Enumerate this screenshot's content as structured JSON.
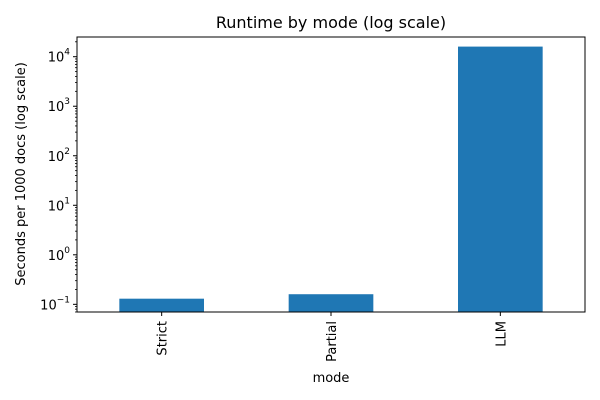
{
  "chart_data": {
    "type": "bar",
    "title": "Runtime by mode (log scale)",
    "xlabel": "mode",
    "ylabel": "Seconds per 1000 docs (log scale)",
    "categories": [
      "Strict",
      "Partial",
      "LLM"
    ],
    "values": [
      0.13,
      0.16,
      16000
    ],
    "y_scale": "log",
    "ylim": [
      0.07,
      25000
    ],
    "y_ticks": [
      {
        "base": "10",
        "exp": "−1",
        "value": 0.1
      },
      {
        "base": "10",
        "exp": "0",
        "value": 1
      },
      {
        "base": "10",
        "exp": "1",
        "value": 10
      },
      {
        "base": "10",
        "exp": "2",
        "value": 100
      },
      {
        "base": "10",
        "exp": "3",
        "value": 1000
      },
      {
        "base": "10",
        "exp": "4",
        "value": 10000
      }
    ],
    "bar_color": "#1f77b4",
    "grid": false,
    "legend": "none"
  }
}
